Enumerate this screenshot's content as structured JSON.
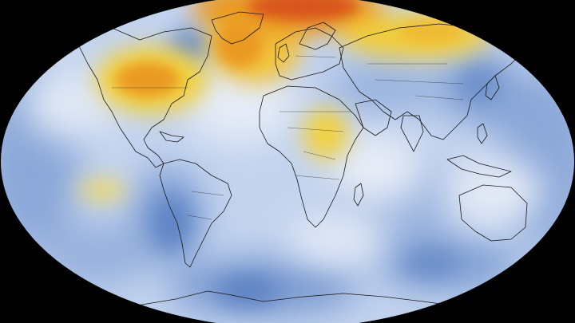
{
  "map": {
    "projection": "robinson",
    "background_color": "#000000",
    "palette": {
      "cool_deep": "#4a74b7",
      "cool": "#8aa7d8",
      "cool_light": "#c3d3ee",
      "neutral": "#eef1f8",
      "warm_yellow": "#f2d13a",
      "warm_orange": "#ea9a22",
      "warm_red": "#d8551c"
    },
    "coastline_color": "#1a1a1a",
    "anomaly_regions": [
      {
        "name": "north-american-warm-anomaly",
        "level": "orange"
      },
      {
        "name": "greenland-warm-anomaly",
        "level": "red"
      },
      {
        "name": "north-atlantic-warm-anomaly",
        "level": "orange"
      },
      {
        "name": "siberian-warm-anomaly",
        "level": "yellow"
      },
      {
        "name": "central-africa-warm-anomaly",
        "level": "yellow"
      },
      {
        "name": "east-pacific-warm-anomaly",
        "level": "yellow"
      }
    ]
  }
}
